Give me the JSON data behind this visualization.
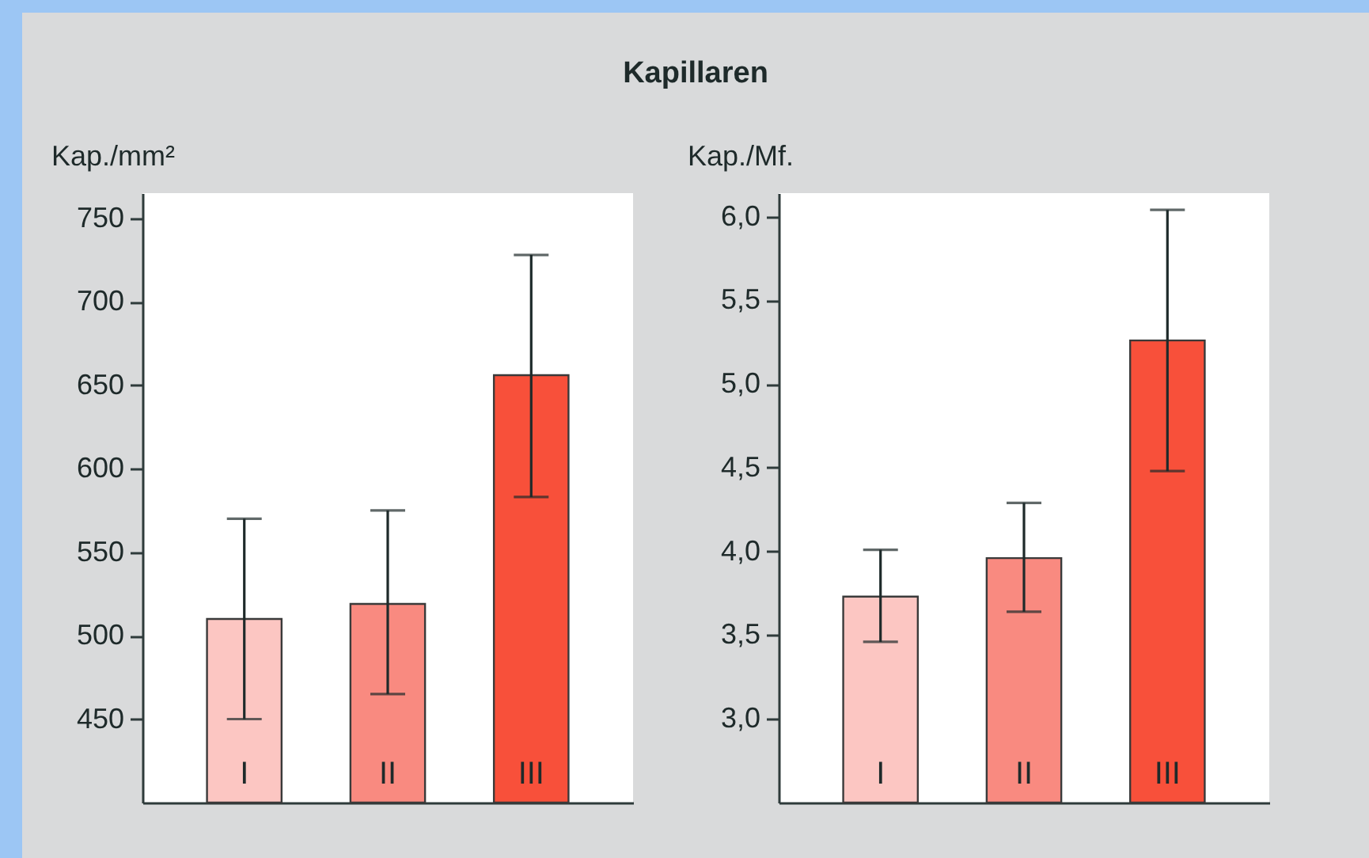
{
  "chart_data": [
    {
      "type": "bar",
      "title": "Kapillaren",
      "ylabel": "Kap./mm²",
      "categories": [
        "I",
        "II",
        "III"
      ],
      "values": [
        510,
        519,
        656
      ],
      "colors": [
        "#fcc6c2",
        "#f98a80",
        "#f8503a"
      ],
      "errors": [
        [
          450,
          570
        ],
        [
          465,
          575
        ],
        [
          583,
          728
        ]
      ],
      "ylim": [
        400,
        765
      ],
      "yticks": [
        450,
        500,
        550,
        600,
        650,
        700,
        750
      ],
      "grid": false
    },
    {
      "type": "bar",
      "ylabel": "Kap./Mf.",
      "categories": [
        "I",
        "II",
        "III"
      ],
      "values": [
        3.73,
        3.96,
        5.26
      ],
      "colors": [
        "#fcc6c2",
        "#f98a80",
        "#f8503a"
      ],
      "errors": [
        [
          3.46,
          4.01
        ],
        [
          3.64,
          4.29
        ],
        [
          4.48,
          6.04
        ]
      ],
      "ylim": [
        2.5,
        6.14
      ],
      "yticks": [
        {
          "value": 3,
          "label": "3,0"
        },
        {
          "value": 3.5,
          "label": "3,5"
        },
        {
          "value": 4,
          "label": "4,0"
        },
        {
          "value": 4.5,
          "label": "4,5"
        },
        {
          "value": 5,
          "label": "5,0"
        },
        {
          "value": 5.5,
          "label": "5,5"
        },
        {
          "value": 6,
          "label": "6,0"
        }
      ],
      "grid": false
    }
  ]
}
